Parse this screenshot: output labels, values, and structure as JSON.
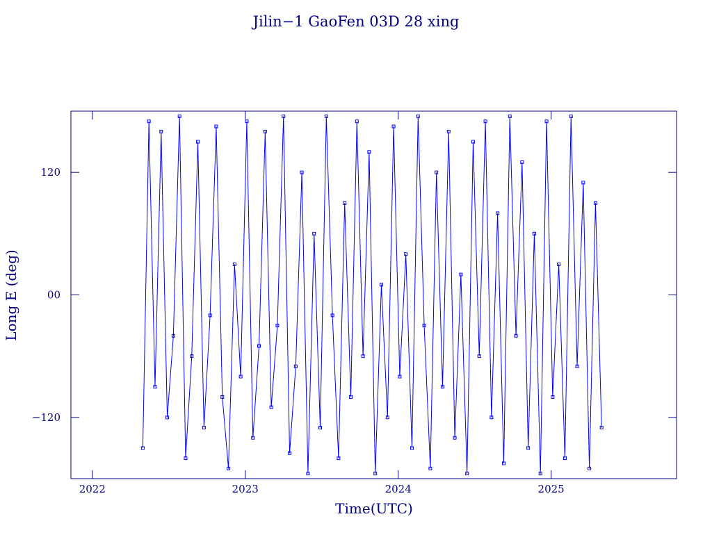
{
  "chart_data": {
    "type": "line",
    "title": "Jilin−1 GaoFen 03D 28 xing",
    "x_label": "Time(UTC)",
    "y_label": "Long E (deg)",
    "xlim": [
      2021.86,
      2025.82
    ],
    "xticks": [
      2022,
      2023,
      2024,
      2025
    ],
    "ylim": [
      -180,
      180
    ],
    "yticks": [
      {
        "value": -120,
        "label": "−120"
      },
      {
        "value": 0,
        "label": "00"
      },
      120
    ],
    "series": [
      {
        "color": "#0000ff",
        "x": [
          2022.33,
          2022.37,
          2022.41,
          2022.45,
          2022.49,
          2022.53,
          2022.57,
          2022.61,
          2022.65,
          2022.69,
          2022.73,
          2022.77,
          2022.81,
          2022.85,
          2022.89,
          2022.93,
          2022.97,
          2023.01,
          2023.05,
          2023.09,
          2023.13,
          2023.17,
          2023.21,
          2023.25,
          2023.29,
          2023.33,
          2023.37,
          2023.41,
          2023.45,
          2023.49,
          2023.53,
          2023.57,
          2023.61,
          2023.65,
          2023.69,
          2023.73,
          2023.77,
          2023.81,
          2023.85,
          2023.89,
          2023.93,
          2023.97,
          2024.01,
          2024.05,
          2024.09,
          2024.13,
          2024.17,
          2024.21,
          2024.25,
          2024.29,
          2024.33,
          2024.37,
          2024.41,
          2024.45,
          2024.49,
          2024.53,
          2024.57,
          2024.61,
          2024.65,
          2024.69,
          2024.73,
          2024.77,
          2024.81,
          2024.85,
          2024.89,
          2024.93,
          2024.97,
          2025.01,
          2025.05,
          2025.09,
          2025.13,
          2025.17,
          2025.21,
          2025.25,
          2025.29,
          2025.33
        ],
        "values": [
          -150,
          170,
          -90,
          160,
          -120,
          -40,
          175,
          -160,
          -60,
          150,
          -130,
          -20,
          165,
          -100,
          -170,
          30,
          -80,
          170,
          -140,
          -50,
          160,
          -110,
          -30,
          175,
          -155,
          -70,
          120,
          -175,
          60,
          -130,
          175,
          -20,
          -160,
          90,
          -100,
          170,
          -60,
          140,
          -175,
          10,
          -120,
          165,
          -80,
          40,
          -150,
          175,
          -30,
          -170,
          120,
          -90,
          160,
          -140,
          20,
          -175,
          150,
          -60,
          170,
          -120,
          80,
          -165,
          175,
          -40,
          130,
          -150,
          60,
          -175,
          170,
          -100,
          30,
          -160,
          175,
          -70,
          110,
          -170,
          90,
          -130
        ]
      }
    ]
  }
}
